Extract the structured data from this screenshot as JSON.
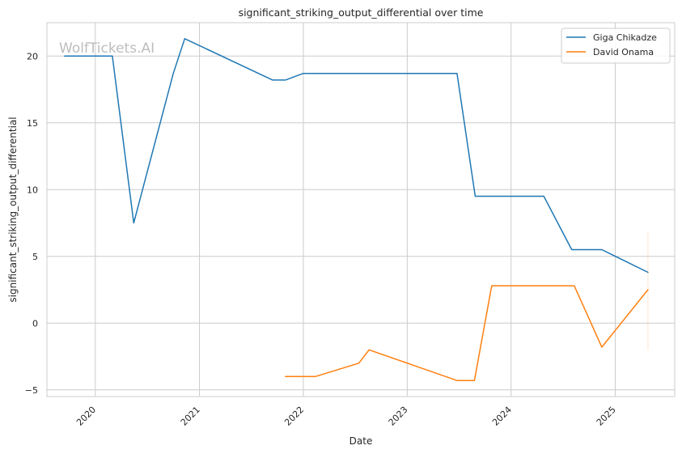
{
  "chart_data": {
    "type": "line",
    "title": "significant_striking_output_differential over time",
    "xlabel": "Date",
    "ylabel": "significant_striking_output_differential",
    "watermark": "WolfTickets.AI",
    "x_ticks": [
      "2020",
      "2021",
      "2022",
      "2023",
      "2024",
      "2025"
    ],
    "y_ticks": [
      "−5",
      "0",
      "5",
      "10",
      "15",
      "20"
    ],
    "ylim": [
      -5.5,
      22.5
    ],
    "xlim": [
      "2019-07-15",
      "2025-07-29"
    ],
    "grid": true,
    "legend_position": "top-right",
    "series": [
      {
        "name": "Giga Chikadze",
        "color": "#1f77b4",
        "points": [
          [
            "2019-09-15",
            20.0
          ],
          [
            "2020-03-01",
            20.0
          ],
          [
            "2020-05-15",
            7.5
          ],
          [
            "2020-10-01",
            18.7
          ],
          [
            "2020-11-10",
            21.3
          ],
          [
            "2021-09-15",
            18.2
          ],
          [
            "2021-10-30",
            18.2
          ],
          [
            "2022-01-01",
            18.7
          ],
          [
            "2023-06-25",
            18.7
          ],
          [
            "2023-08-28",
            9.5
          ],
          [
            "2024-04-25",
            9.5
          ],
          [
            "2024-08-01",
            5.5
          ],
          [
            "2024-11-15",
            5.5
          ],
          [
            "2025-04-26",
            3.8
          ]
        ]
      },
      {
        "name": "David Onama",
        "color": "#ff7f0e",
        "points": [
          [
            "2021-10-30",
            -4.0
          ],
          [
            "2022-02-12",
            -4.0
          ],
          [
            "2022-07-15",
            -3.0
          ],
          [
            "2022-08-20",
            -2.0
          ],
          [
            "2023-06-25",
            -4.3
          ],
          [
            "2023-08-25",
            -4.3
          ],
          [
            "2023-10-25",
            2.8
          ],
          [
            "2024-08-10",
            2.8
          ],
          [
            "2024-11-15",
            -1.8
          ],
          [
            "2025-04-26",
            2.5
          ]
        ],
        "error_bar": {
          "x": "2025-04-26",
          "low": -2.0,
          "high": 6.8
        }
      }
    ]
  }
}
